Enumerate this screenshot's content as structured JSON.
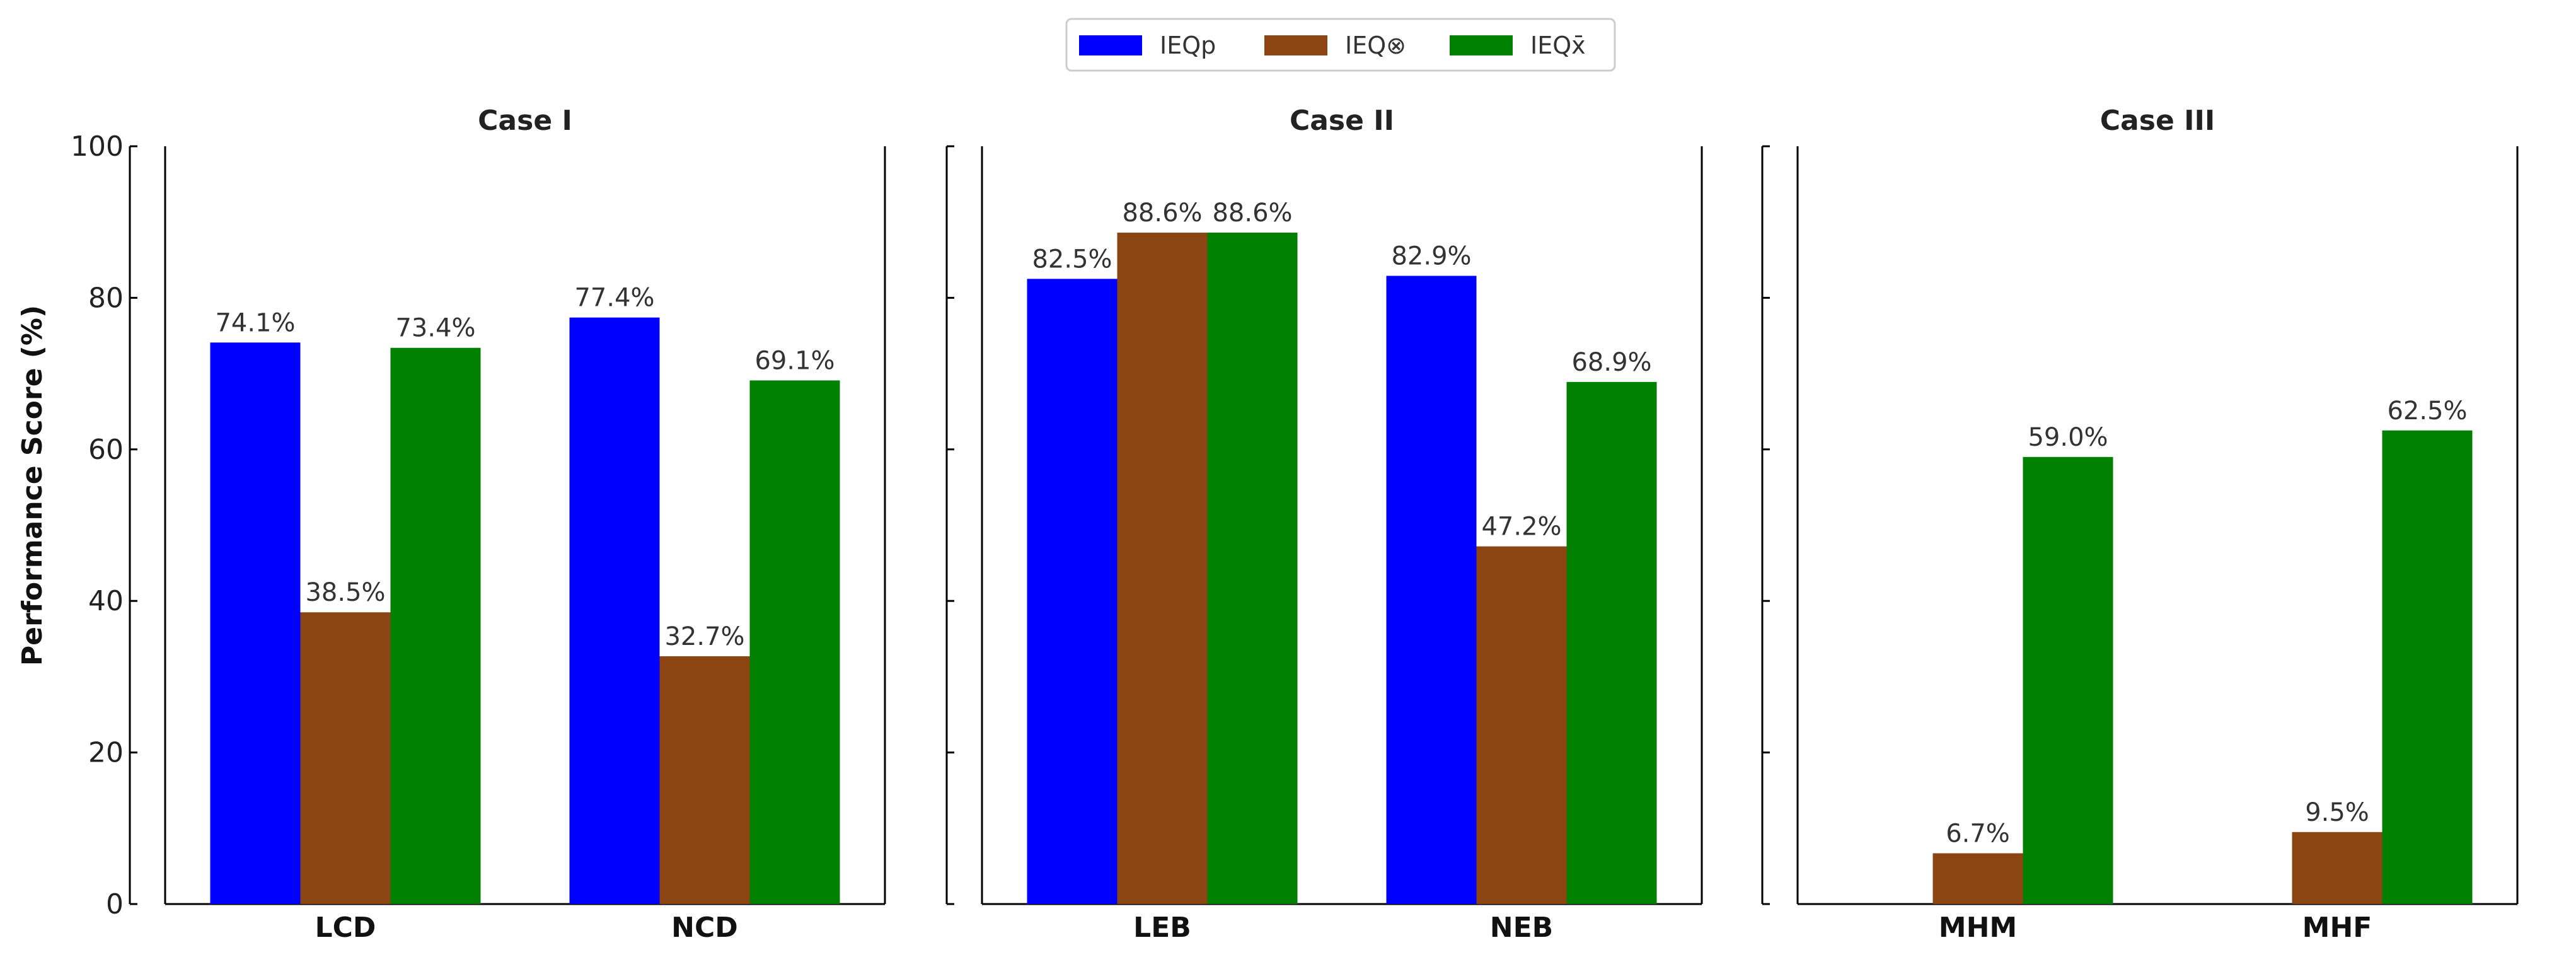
{
  "chart_data": {
    "type": "bar",
    "ylabel": "Performance Score (%)",
    "ylim": [
      0,
      100
    ],
    "yticks": [
      "0",
      "20",
      "40",
      "60",
      "80",
      "100"
    ],
    "legend": {
      "placement": "top-center",
      "entries": [
        {
          "name": "IEQp",
          "color": "#0000ff"
        },
        {
          "name": "IEQ⊗",
          "color": "#8b4513"
        },
        {
          "name": "IEQx̄",
          "color": "#008000"
        }
      ]
    },
    "panels": [
      {
        "title": "Case I",
        "categories": [
          "LCD",
          "NCD"
        ],
        "series": [
          {
            "name": "IEQp",
            "values": [
              74.1,
              77.4
            ],
            "labels": [
              "74.1%",
              "77.4%"
            ]
          },
          {
            "name": "IEQ⊗",
            "values": [
              38.5,
              32.7
            ],
            "labels": [
              "38.5%",
              "32.7%"
            ]
          },
          {
            "name": "IEQx̄",
            "values": [
              73.4,
              69.1
            ],
            "labels": [
              "73.4%",
              "69.1%"
            ]
          }
        ]
      },
      {
        "title": "Case II",
        "categories": [
          "LEB",
          "NEB"
        ],
        "series": [
          {
            "name": "IEQp",
            "values": [
              82.5,
              82.9
            ],
            "labels": [
              "82.5%",
              "82.9%"
            ]
          },
          {
            "name": "IEQ⊗",
            "values": [
              88.6,
              47.2
            ],
            "labels": [
              "88.6%",
              "47.2%"
            ]
          },
          {
            "name": "IEQx̄",
            "values": [
              88.6,
              68.9
            ],
            "labels": [
              "88.6%",
              "68.9%"
            ]
          }
        ]
      },
      {
        "title": "Case III",
        "categories": [
          "MHM",
          "MHF"
        ],
        "series": [
          {
            "name": "IEQp",
            "values": [
              0,
              0
            ],
            "labels": [
              "",
              ""
            ]
          },
          {
            "name": "IEQ⊗",
            "values": [
              6.7,
              9.5
            ],
            "labels": [
              "6.7%",
              "9.5%"
            ]
          },
          {
            "name": "IEQx̄",
            "values": [
              59.0,
              62.5
            ],
            "labels": [
              "59.0%",
              "62.5%"
            ]
          }
        ]
      }
    ]
  }
}
